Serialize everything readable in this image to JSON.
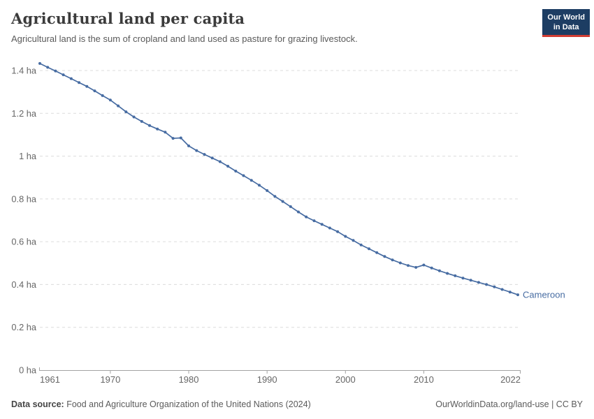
{
  "header": {
    "title": "Agricultural land per capita",
    "subtitle": "Agricultural land is the sum of cropland and land used as pasture for grazing livestock.",
    "logo": {
      "line1": "Our World",
      "line2": "in Data"
    }
  },
  "chart_data": {
    "type": "line",
    "title": "Agricultural land per capita",
    "unit": "ha",
    "xlabel": "",
    "ylabel": "",
    "xlim": [
      1961,
      2022
    ],
    "ylim": [
      0,
      1.4
    ],
    "grid": true,
    "legend_position": "end-of-line",
    "x_ticks": [
      1961,
      1970,
      1980,
      1990,
      2000,
      2010,
      2022
    ],
    "y_ticks": [
      0,
      0.2,
      0.4,
      0.6,
      0.8,
      1,
      1.2,
      1.4
    ],
    "y_tick_suffix": " ha",
    "x": [
      1961,
      1962,
      1963,
      1964,
      1965,
      1966,
      1967,
      1968,
      1969,
      1970,
      1971,
      1972,
      1973,
      1974,
      1975,
      1976,
      1977,
      1978,
      1979,
      1980,
      1981,
      1982,
      1983,
      1984,
      1985,
      1986,
      1987,
      1988,
      1989,
      1990,
      1991,
      1992,
      1993,
      1994,
      1995,
      1996,
      1997,
      1998,
      1999,
      2000,
      2001,
      2002,
      2003,
      2004,
      2005,
      2006,
      2007,
      2008,
      2009,
      2010,
      2011,
      2012,
      2013,
      2014,
      2015,
      2016,
      2017,
      2018,
      2019,
      2020,
      2021,
      2022
    ],
    "series": [
      {
        "name": "Cameroon",
        "color": "#476ca2",
        "values": [
          1.433,
          1.415,
          1.398,
          1.38,
          1.362,
          1.344,
          1.326,
          1.305,
          1.283,
          1.262,
          1.235,
          1.207,
          1.183,
          1.162,
          1.143,
          1.127,
          1.112,
          1.083,
          1.085,
          1.048,
          1.026,
          1.008,
          0.991,
          0.974,
          0.953,
          0.93,
          0.909,
          0.887,
          0.864,
          0.839,
          0.812,
          0.788,
          0.764,
          0.739,
          0.716,
          0.698,
          0.681,
          0.664,
          0.647,
          0.625,
          0.606,
          0.585,
          0.567,
          0.549,
          0.531,
          0.515,
          0.501,
          0.489,
          0.48,
          0.491,
          0.477,
          0.464,
          0.452,
          0.441,
          0.43,
          0.42,
          0.41,
          0.4,
          0.389,
          0.377,
          0.365,
          0.352
        ]
      }
    ]
  },
  "footer": {
    "source_label": "Data source:",
    "source_text": "Food and Agriculture Organization of the United Nations (2024)",
    "credit": "OurWorldinData.org/land-use | CC BY"
  },
  "colors": {
    "line": "#476ca2",
    "grid": "#dcdcdc",
    "axis": "#a3a3a3",
    "tick_text": "#666666",
    "logo_bg": "#1d3d63",
    "logo_stripe": "#d13d33"
  }
}
